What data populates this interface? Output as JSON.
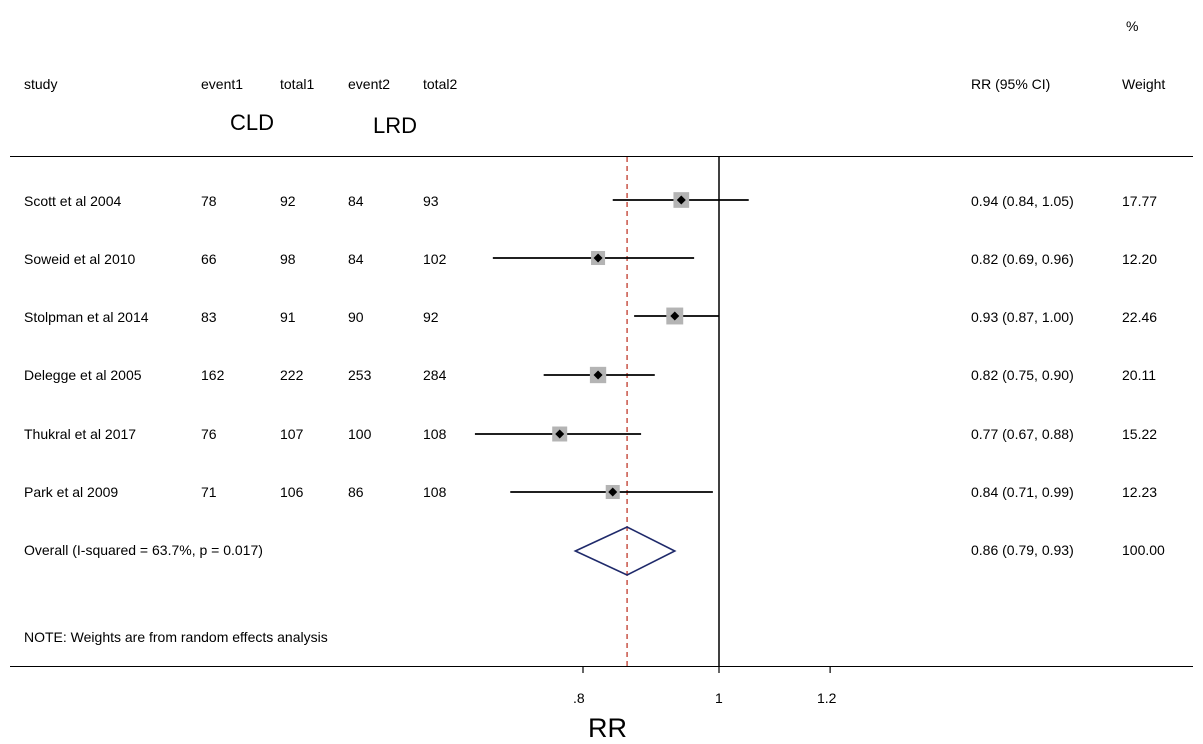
{
  "header": {
    "study": "study",
    "event1": "event1",
    "total1": "total1",
    "event2": "event2",
    "total2": "total2",
    "rr_ci": "RR (95% CI)",
    "pct": "%",
    "weight": "Weight",
    "group1": "CLD",
    "group2": "LRD"
  },
  "studies": [
    {
      "name": "Scott et al 2004",
      "event1": "78",
      "total1": "92",
      "event2": "84",
      "total2": "93",
      "rr_text": "0.94 (0.84, 1.05)",
      "weight": "17.77"
    },
    {
      "name": "Soweid et al 2010",
      "event1": "66",
      "total1": "98",
      "event2": "84",
      "total2": "102",
      "rr_text": "0.82 (0.69, 0.96)",
      "weight": "12.20"
    },
    {
      "name": "Stolpman et al 2014",
      "event1": "83",
      "total1": "91",
      "event2": "90",
      "total2": "92",
      "rr_text": "0.93 (0.87, 1.00)",
      "weight": "22.46"
    },
    {
      "name": "Delegge et al 2005",
      "event1": "162",
      "total1": "222",
      "event2": "253",
      "total2": "284",
      "rr_text": "0.82 (0.75, 0.90)",
      "weight": "20.11"
    },
    {
      "name": "Thukral et al 2017",
      "event1": "76",
      "total1": "107",
      "event2": "100",
      "total2": "108",
      "rr_text": "0.77 (0.67, 0.88)",
      "weight": "15.22"
    },
    {
      "name": "Park et al 2009",
      "event1": "71",
      "total1": "106",
      "event2": "86",
      "total2": "108",
      "rr_text": "0.84 (0.71, 0.99)",
      "weight": "12.23"
    }
  ],
  "overall": {
    "label": "Overall  (I-squared = 63.7%, p = 0.017)",
    "rr_text": "0.86 (0.79, 0.93)",
    "weight": "100.00"
  },
  "note": "NOTE: Weights are from random effects analysis",
  "chart_data": {
    "type": "forest",
    "xlabel": "RR",
    "xlim": [
      0.66,
      1.2
    ],
    "xticks": [
      {
        "value": 0.8,
        "label": ".8"
      },
      {
        "value": 1.0,
        "label": "1"
      },
      {
        "value": 1.2,
        "label": "1.2"
      }
    ],
    "null_line": 1.0,
    "studies": [
      {
        "name": "Scott et al 2004",
        "rr": 0.94,
        "lo": 0.84,
        "hi": 1.05,
        "weight": 17.77
      },
      {
        "name": "Soweid et al 2010",
        "rr": 0.82,
        "lo": 0.69,
        "hi": 0.96,
        "weight": 12.2
      },
      {
        "name": "Stolpman et al 2014",
        "rr": 0.93,
        "lo": 0.87,
        "hi": 1.0,
        "weight": 22.46
      },
      {
        "name": "Delegge et al 2005",
        "rr": 0.82,
        "lo": 0.75,
        "hi": 0.9,
        "weight": 20.11
      },
      {
        "name": "Thukral et al 2017",
        "rr": 0.77,
        "lo": 0.67,
        "hi": 0.88,
        "weight": 15.22
      },
      {
        "name": "Park et al 2009",
        "rr": 0.84,
        "lo": 0.71,
        "hi": 0.99,
        "weight": 12.23
      }
    ],
    "overall": {
      "rr": 0.86,
      "lo": 0.79,
      "hi": 0.93,
      "weight": 100.0
    },
    "colors": {
      "line": "#000000",
      "box": "#b4b4b4",
      "diamond": "#1f2a6b",
      "overall_line": "#c0392b"
    }
  }
}
